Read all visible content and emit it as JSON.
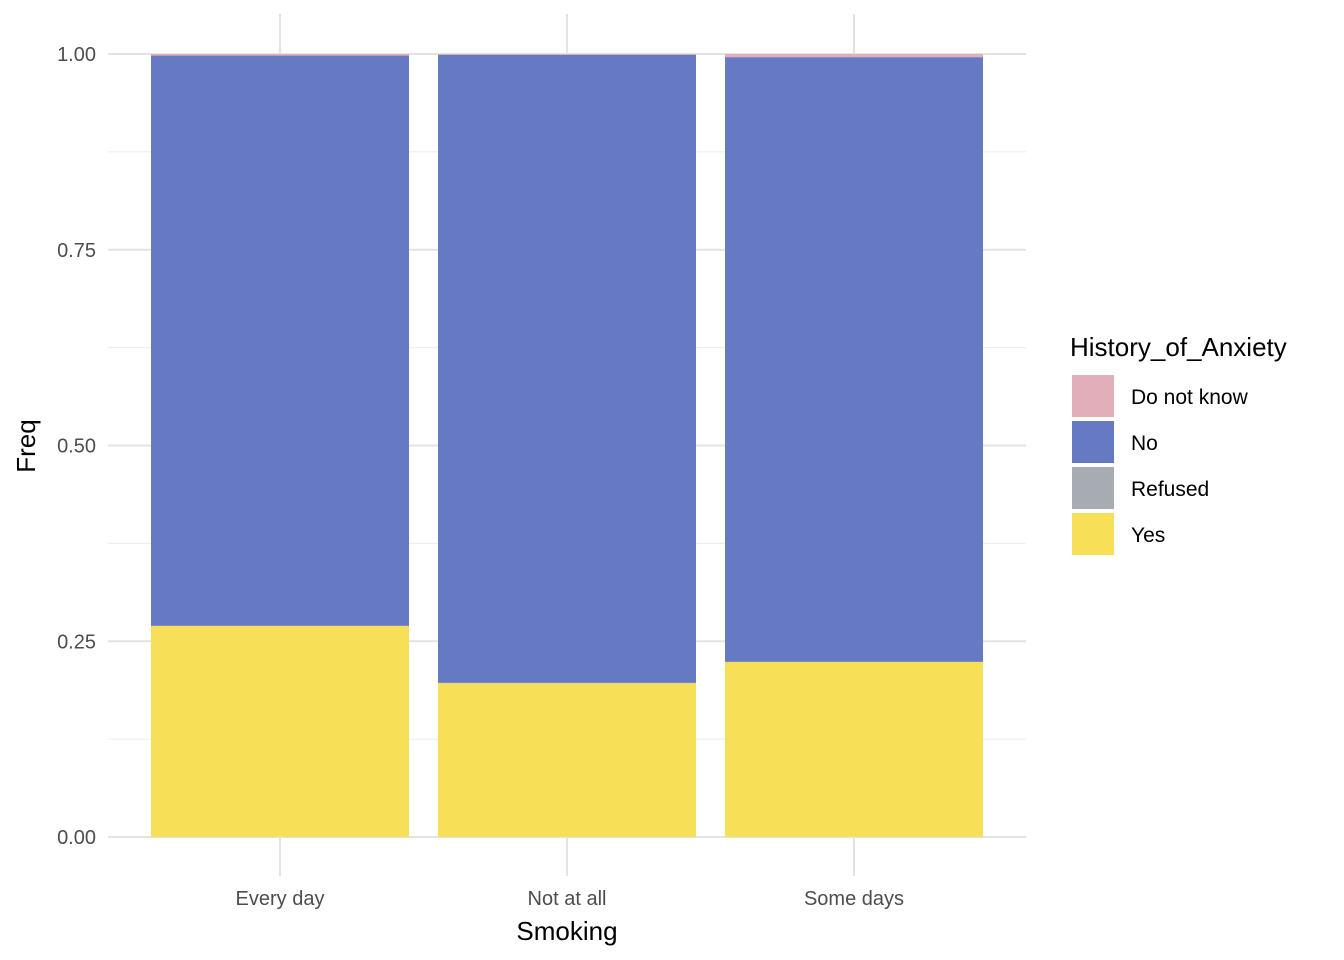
{
  "chart_data": {
    "type": "bar",
    "stacked": true,
    "title": "",
    "xlabel": "Smoking",
    "ylabel": "Freq",
    "categories": [
      "Every day",
      "Not at all",
      "Some days"
    ],
    "ylim": [
      0,
      1
    ],
    "y_ticks": [
      "0.00",
      "0.25",
      "0.50",
      "0.75",
      "1.00"
    ],
    "grid": true,
    "legend_title": "History_of_Anxiety",
    "legend_position": "right",
    "series": [
      {
        "name": "Do not know",
        "color": "#E1AEB9",
        "values": [
          0.002,
          0.001,
          0.004
        ]
      },
      {
        "name": "No",
        "color": "#6679C3",
        "values": [
          0.728,
          0.802,
          0.772
        ]
      },
      {
        "name": "Refused",
        "color": "#A6ACB2",
        "values": [
          0.0005,
          0.0005,
          0.0005
        ]
      },
      {
        "name": "Yes",
        "color": "#F7DF57",
        "values": [
          0.2695,
          0.1965,
          0.2235
        ]
      }
    ]
  }
}
